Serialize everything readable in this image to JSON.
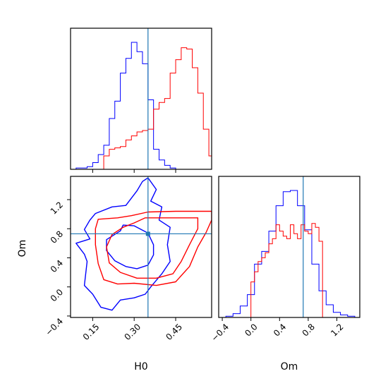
{
  "chart_data": [
    {
      "panel": "H0 marginal",
      "type": "histogram",
      "x_param": "H0",
      "xlim": [
        0.07,
        0.58
      ],
      "truth": 0.35,
      "series": [
        {
          "color": "#0000ff",
          "bin_edges": [
            0.07,
            0.09,
            0.11,
            0.13,
            0.15,
            0.17,
            0.19,
            0.21,
            0.23,
            0.25,
            0.27,
            0.29,
            0.31,
            0.33,
            0.35,
            0.37,
            0.39,
            0.41,
            0.43,
            0.45,
            0.47
          ],
          "density": [
            0.0,
            0.01,
            0.01,
            0.02,
            0.05,
            0.11,
            0.18,
            0.38,
            0.51,
            0.72,
            0.83,
            0.95,
            0.88,
            0.79,
            0.52,
            0.15,
            0.07,
            0.03,
            0.01,
            0.0
          ]
        },
        {
          "color": "#ff0000",
          "bin_edges": [
            0.19,
            0.21,
            0.23,
            0.25,
            0.27,
            0.29,
            0.31,
            0.33,
            0.35,
            0.37,
            0.39,
            0.41,
            0.43,
            0.45,
            0.47,
            0.49,
            0.51,
            0.53,
            0.55,
            0.57,
            0.58
          ],
          "density": [
            0.1,
            0.15,
            0.16,
            0.17,
            0.22,
            0.25,
            0.28,
            0.29,
            0.3,
            0.45,
            0.5,
            0.53,
            0.72,
            0.82,
            0.91,
            0.9,
            0.76,
            0.57,
            0.3,
            0.1
          ]
        }
      ]
    },
    {
      "panel": "H0 vs Om",
      "type": "contour",
      "xlabel": "H0",
      "ylabel": "Om",
      "xlim": [
        0.07,
        0.58
      ],
      "ylim": [
        -0.42,
        1.52
      ],
      "xticks": [
        "0.15",
        "0.30",
        "0.45"
      ],
      "yticks": [
        "-0.4",
        "0.0",
        "0.4",
        "0.8",
        "1.2"
      ],
      "truth": {
        "H0": 0.35,
        "Om": 0.73
      },
      "series": [
        {
          "color": "#0000ff",
          "outer_contour": [
            [
              0.33,
              1.45
            ],
            [
              0.31,
              1.32
            ],
            [
              0.27,
              1.12
            ],
            [
              0.22,
              1.1
            ],
            [
              0.16,
              1.01
            ],
            [
              0.14,
              0.92
            ],
            [
              0.12,
              0.79
            ],
            [
              0.14,
              0.66
            ],
            [
              0.09,
              0.6
            ],
            [
              0.12,
              0.45
            ],
            [
              0.13,
              0.35
            ],
            [
              0.12,
              0.02
            ],
            [
              0.15,
              -0.1
            ],
            [
              0.18,
              -0.28
            ],
            [
              0.22,
              -0.32
            ],
            [
              0.25,
              -0.18
            ],
            [
              0.3,
              -0.15
            ],
            [
              0.34,
              -0.1
            ],
            [
              0.36,
              0.0
            ],
            [
              0.4,
              0.18
            ],
            [
              0.43,
              0.35
            ],
            [
              0.42,
              0.58
            ],
            [
              0.43,
              0.82
            ],
            [
              0.39,
              0.92
            ],
            [
              0.4,
              1.1
            ],
            [
              0.36,
              1.18
            ],
            [
              0.38,
              1.34
            ],
            [
              0.35,
              1.5
            ]
          ],
          "inner_contour": [
            [
              0.25,
              0.77
            ],
            [
              0.2,
              0.65
            ],
            [
              0.2,
              0.5
            ],
            [
              0.23,
              0.36
            ],
            [
              0.27,
              0.28
            ],
            [
              0.31,
              0.25
            ],
            [
              0.35,
              0.3
            ],
            [
              0.37,
              0.44
            ],
            [
              0.37,
              0.58
            ],
            [
              0.35,
              0.74
            ],
            [
              0.3,
              0.84
            ],
            [
              0.26,
              0.85
            ]
          ]
        },
        {
          "color": "#ff0000",
          "outer_contour": [
            [
              0.35,
              1.03
            ],
            [
              0.45,
              1.04
            ],
            [
              0.58,
              1.04
            ],
            [
              0.58,
              0.92
            ],
            [
              0.56,
              0.75
            ],
            [
              0.53,
              0.55
            ],
            [
              0.5,
              0.28
            ],
            [
              0.45,
              0.07
            ],
            [
              0.38,
              0.02
            ],
            [
              0.3,
              0.05
            ],
            [
              0.24,
              0.04
            ],
            [
              0.19,
              0.1
            ],
            [
              0.17,
              0.32
            ],
            [
              0.16,
              0.58
            ],
            [
              0.16,
              0.8
            ],
            [
              0.17,
              0.93
            ],
            [
              0.24,
              0.95
            ],
            [
              0.29,
              0.98
            ]
          ],
          "inner_contour": [
            [
              0.34,
              0.95
            ],
            [
              0.45,
              0.95
            ],
            [
              0.53,
              0.95
            ],
            [
              0.53,
              0.8
            ],
            [
              0.5,
              0.58
            ],
            [
              0.47,
              0.35
            ],
            [
              0.44,
              0.18
            ],
            [
              0.38,
              0.12
            ],
            [
              0.31,
              0.12
            ],
            [
              0.25,
              0.2
            ],
            [
              0.21,
              0.33
            ],
            [
              0.2,
              0.55
            ],
            [
              0.22,
              0.72
            ],
            [
              0.26,
              0.82
            ],
            [
              0.3,
              0.88
            ]
          ]
        }
      ]
    },
    {
      "panel": "Om marginal",
      "type": "histogram",
      "xlabel": "Om",
      "x_param": "Om",
      "xlim": [
        -0.45,
        1.52
      ],
      "xticks": [
        "-0.4",
        "0.0",
        "0.4",
        "0.8",
        "1.2"
      ],
      "truth": 0.73,
      "series": [
        {
          "color": "#0000ff",
          "bin_edges": [
            -0.45,
            -0.35,
            -0.25,
            -0.15,
            -0.05,
            0.05,
            0.15,
            0.25,
            0.35,
            0.45,
            0.55,
            0.65,
            0.75,
            0.85,
            0.95,
            1.05,
            1.15,
            1.25,
            1.35,
            1.45,
            1.52
          ],
          "density": [
            0.0,
            0.01,
            0.03,
            0.09,
            0.18,
            0.42,
            0.52,
            0.68,
            0.88,
            0.99,
            1.0,
            0.88,
            0.69,
            0.42,
            0.21,
            0.1,
            0.04,
            0.02,
            0.01,
            0.0
          ]
        },
        {
          "color": "#ff0000",
          "bin_edges": [
            0.0,
            0.05,
            0.1,
            0.15,
            0.2,
            0.25,
            0.3,
            0.35,
            0.4,
            0.45,
            0.5,
            0.55,
            0.6,
            0.65,
            0.7,
            0.75,
            0.8,
            0.85,
            0.9,
            0.95,
            1.0
          ],
          "density": [
            0.28,
            0.36,
            0.44,
            0.47,
            0.51,
            0.58,
            0.62,
            0.73,
            0.68,
            0.64,
            0.62,
            0.73,
            0.66,
            0.62,
            0.73,
            0.68,
            0.66,
            0.74,
            0.71,
            0.6
          ]
        }
      ]
    }
  ]
}
